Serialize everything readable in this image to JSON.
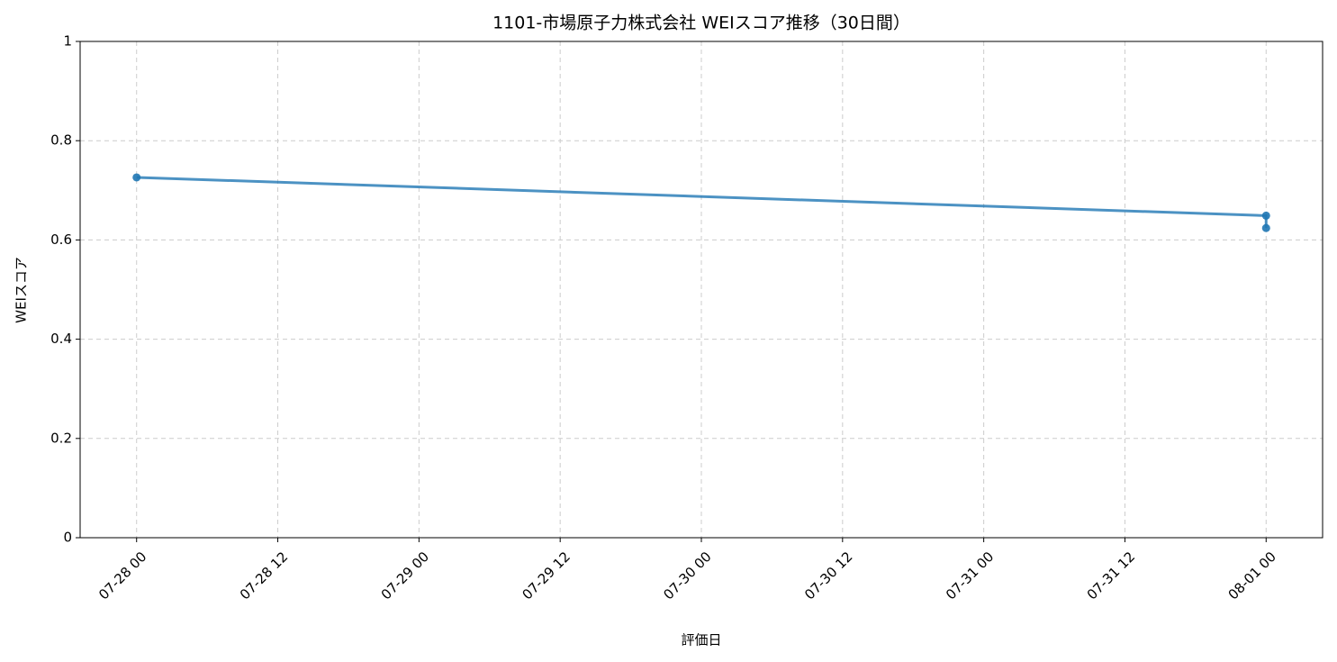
{
  "chart_data": {
    "type": "line",
    "title": "1101-市場原子力株式会社 WEIスコア推移（30日間）",
    "xlabel": "評価日",
    "ylabel": "WEIスコア",
    "x": [
      "07-28 00",
      "08-01 00",
      "08-01 00"
    ],
    "series": [
      {
        "name": "WEIスコア",
        "color": "#1f77b4",
        "values": [
          0.726,
          0.649,
          0.624
        ]
      }
    ],
    "xlim": [
      "07-27 19.2",
      "08-01 04.8"
    ],
    "xticks": [
      "07-28 00",
      "07-28 12",
      "07-29 00",
      "07-29 12",
      "07-30 00",
      "07-30 12",
      "07-31 00",
      "07-31 12",
      "08-01 00"
    ],
    "ylim": [
      0,
      1
    ],
    "yticks": [
      0,
      0.2,
      0.4,
      0.6,
      0.8,
      1
    ],
    "grid": true
  }
}
